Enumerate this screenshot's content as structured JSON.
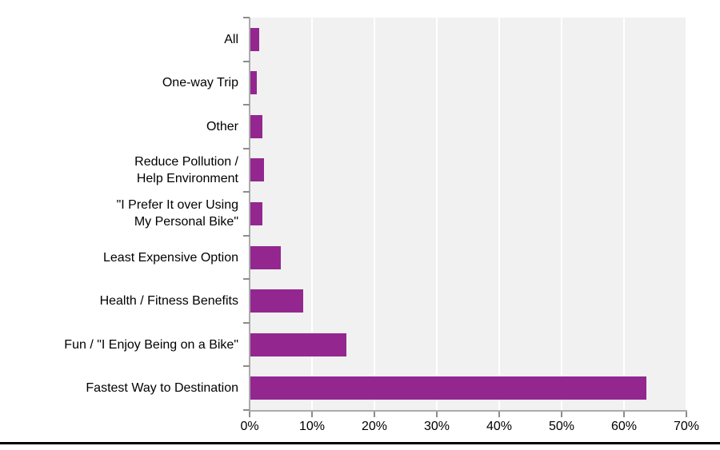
{
  "chart_data": {
    "type": "bar",
    "orientation": "horizontal",
    "title": "",
    "xlabel": "",
    "ylabel": "",
    "categories": [
      "All",
      "One-way Trip",
      "Other",
      "Reduce Pollution /\nHelp Environment",
      "\"I Prefer It over Using\nMy Personal Bike\"",
      "Least Expensive Option",
      "Health / Fitness Benefits",
      "Fun / \"I Enjoy Being on a Bike\"",
      "Fastest Way to Destination"
    ],
    "values": [
      1.5,
      1.2,
      2.1,
      2.3,
      2.1,
      5.0,
      8.6,
      15.5,
      63.6
    ],
    "value_unit": "%",
    "xlim": [
      0,
      70
    ],
    "x_tick_step": 10,
    "x_tick_labels": [
      "0%",
      "10%",
      "20%",
      "30%",
      "40%",
      "50%",
      "60%",
      "70%"
    ],
    "grid": true,
    "legend": false,
    "colors": {
      "bar": "#93278F",
      "plot_background": "#F1F1F1",
      "gridline": "#FFFFFF",
      "axis_line": "#ABABAB",
      "tick_mark": "#8C8C8C",
      "text": "#000000",
      "bottom_rule": "#000000"
    }
  }
}
